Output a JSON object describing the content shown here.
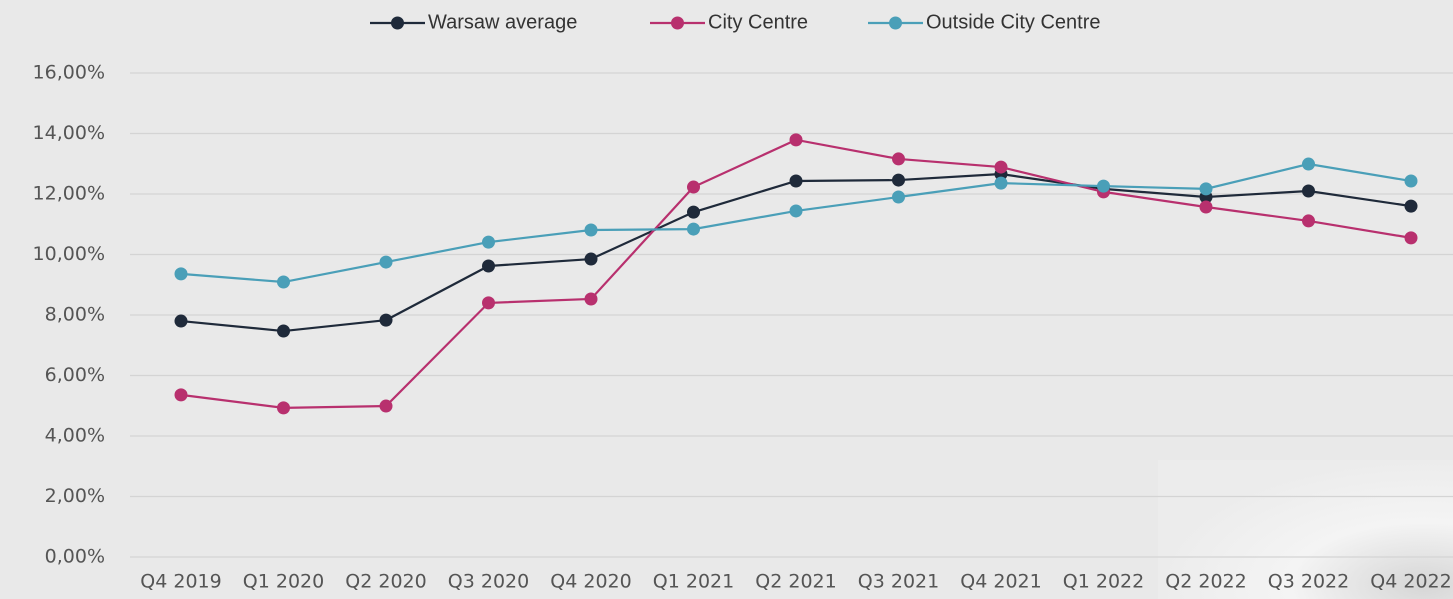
{
  "chart_data": {
    "type": "line",
    "categories": [
      "Q4 2019",
      "Q1 2020",
      "Q2 2020",
      "Q3 2020",
      "Q4 2020",
      "Q1 2021",
      "Q2 2021",
      "Q3 2021",
      "Q4 2021",
      "Q1 2022",
      "Q2 2022",
      "Q3 2022",
      "Q4 2022"
    ],
    "series": [
      {
        "name": "Warsaw average",
        "color": "#1f2a3a",
        "values": [
          7.8,
          7.47,
          7.83,
          9.62,
          9.85,
          11.4,
          12.43,
          12.46,
          12.66,
          12.17,
          11.9,
          12.1,
          11.6
        ]
      },
      {
        "name": "City Centre",
        "color": "#b8306e",
        "values": [
          5.36,
          4.93,
          4.99,
          8.4,
          8.53,
          12.23,
          13.79,
          13.16,
          12.89,
          12.07,
          11.57,
          11.11,
          10.55
        ]
      },
      {
        "name": "Outside City Centre",
        "color": "#4a9fb8",
        "values": [
          9.36,
          9.09,
          9.75,
          10.41,
          10.81,
          10.84,
          11.44,
          11.9,
          12.36,
          12.26,
          12.17,
          12.99,
          12.43
        ]
      }
    ],
    "ylim": [
      0,
      16
    ],
    "yticks": [
      {
        "value": 0,
        "label": "0,00%"
      },
      {
        "value": 2,
        "label": "2,00%"
      },
      {
        "value": 4,
        "label": "4,00%"
      },
      {
        "value": 6,
        "label": "6,00%"
      },
      {
        "value": 8,
        "label": "8,00%"
      },
      {
        "value": 10,
        "label": "10,00%"
      },
      {
        "value": 12,
        "label": "12,00%"
      },
      {
        "value": 14,
        "label": "14,00%"
      },
      {
        "value": 16,
        "label": "16,00%"
      }
    ],
    "grid": true,
    "legend": "top"
  }
}
